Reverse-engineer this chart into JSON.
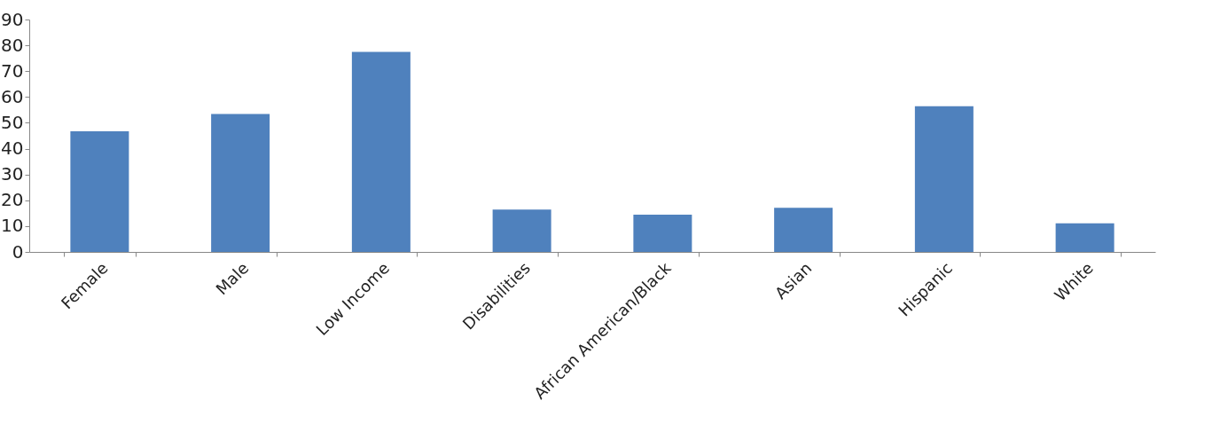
{
  "chart_data": {
    "type": "bar",
    "categories": [
      "Female",
      "Male",
      "Low Income",
      "Disabilities",
      "African American/Black",
      "Asian",
      "Hispanic",
      "White"
    ],
    "values": [
      46.7,
      53.4,
      77.5,
      16.4,
      14.4,
      17.1,
      56.4,
      11.1
    ],
    "color": "#4f81bd",
    "ylim": [
      0,
      90
    ],
    "yticks": [
      0,
      10,
      20,
      30,
      40,
      50,
      60,
      70,
      80,
      90
    ],
    "grid": false
  }
}
